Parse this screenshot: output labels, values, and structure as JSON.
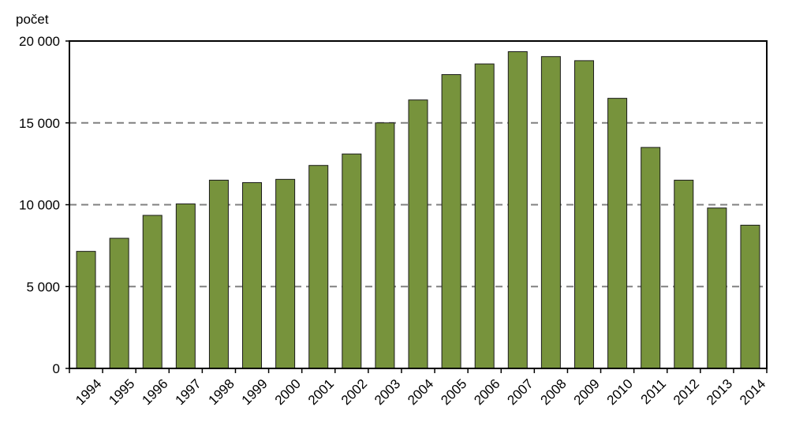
{
  "chart_data": {
    "type": "bar",
    "title": "",
    "xlabel": "",
    "ylabel": "počet",
    "categories": [
      "1994",
      "1995",
      "1996",
      "1997",
      "1998",
      "1999",
      "2000",
      "2001",
      "2002",
      "2003",
      "2004",
      "2005",
      "2006",
      "2007",
      "2008",
      "2009",
      "2010",
      "2011",
      "2012",
      "2013",
      "2014"
    ],
    "values": [
      7150,
      7950,
      9350,
      10050,
      11500,
      11350,
      11550,
      12400,
      13100,
      15000,
      16400,
      17950,
      18600,
      19350,
      19050,
      18800,
      16500,
      13500,
      11500,
      9800,
      8750
    ],
    "ylim": [
      0,
      20000
    ],
    "yticks": [
      0,
      5000,
      10000,
      15000,
      20000
    ],
    "ytick_labels": [
      "0",
      "5 000",
      "10 000",
      "15 000",
      "20 000"
    ],
    "grid": true,
    "grid_style": "dashed",
    "legend": "none",
    "colors": {
      "bar_fill": "#77933c",
      "bar_stroke": "#1a1a1a",
      "grid": "#808080",
      "frame": "#000000"
    }
  }
}
